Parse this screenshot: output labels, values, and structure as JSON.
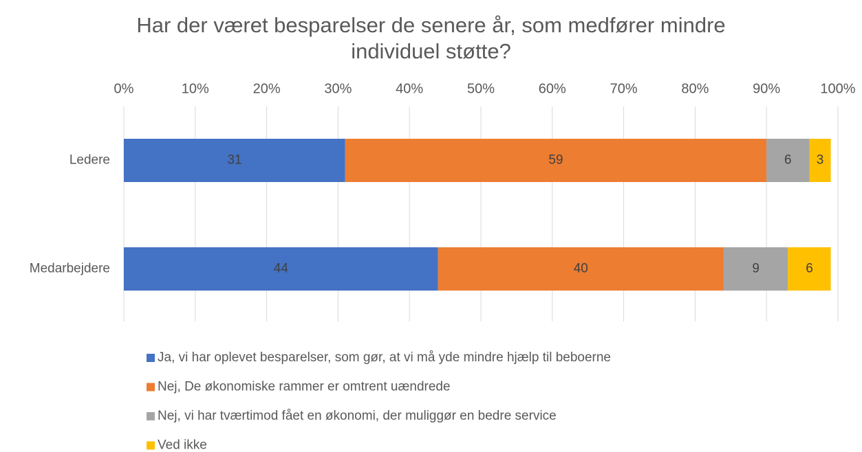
{
  "chart_data": {
    "type": "stacked_barh",
    "title": "Har der været besparelser de senere år, som medfører mindre individuel støtte?",
    "categories": [
      "Ledere",
      "Medarbejdere"
    ],
    "series": [
      {
        "name": "Ja, vi har oplevet besparelser, som gør, at vi må yde mindre hjælp til beboerne",
        "color": "#4472c4",
        "values": [
          31,
          44
        ]
      },
      {
        "name": "Nej, De økonomiske rammer er omtrent uændrede",
        "color": "#ed7d31",
        "values": [
          59,
          40
        ]
      },
      {
        "name": "Nej, vi har tværtimod fået en økonomi, der muliggør en bedre service",
        "color": "#a5a5a5",
        "values": [
          6,
          9
        ]
      },
      {
        "name": "Ved ikke",
        "color": "#ffc000",
        "values": [
          3,
          6
        ]
      }
    ],
    "xlim": [
      0,
      100
    ],
    "xticks": [
      {
        "value": 0,
        "label": "0%"
      },
      {
        "value": 10,
        "label": "10%"
      },
      {
        "value": 20,
        "label": "20%"
      },
      {
        "value": 30,
        "label": "30%"
      },
      {
        "value": 40,
        "label": "40%"
      },
      {
        "value": 50,
        "label": "50%"
      },
      {
        "value": 60,
        "label": "60%"
      },
      {
        "value": 70,
        "label": "70%"
      },
      {
        "value": 80,
        "label": "80%"
      },
      {
        "value": 90,
        "label": "90%"
      },
      {
        "value": 100,
        "label": "100%"
      }
    ],
    "grid": true,
    "legend": "bottom"
  }
}
